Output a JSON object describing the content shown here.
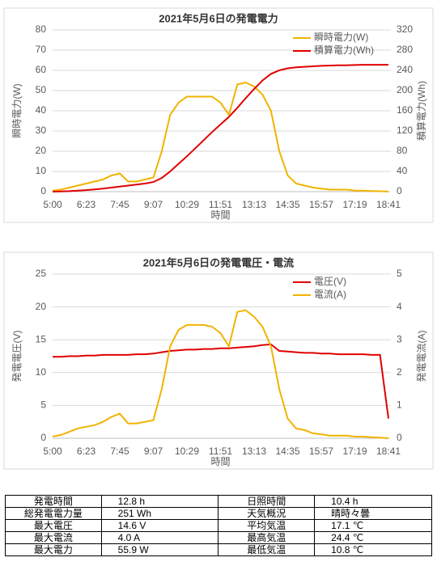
{
  "chart_data": [
    {
      "type": "line",
      "title": "2021年5月6日の発電電力",
      "xlabel": "時間",
      "ylabel": "瞬時電力(W)",
      "y2label": "積算電力(Wh)",
      "categories": [
        "5:00",
        null,
        null,
        null,
        "6:23",
        null,
        null,
        null,
        "7:45",
        null,
        null,
        null,
        "9:07",
        null,
        null,
        null,
        "10:29",
        null,
        null,
        null,
        "11:51",
        null,
        null,
        null,
        "13:13",
        null,
        null,
        null,
        "14:35",
        null,
        null,
        null,
        "15:57",
        null,
        null,
        null,
        "17:19",
        null,
        null,
        null,
        "18:41"
      ],
      "ylim": [
        0,
        80
      ],
      "yticks": [
        0,
        10,
        20,
        30,
        40,
        50,
        60,
        70,
        80
      ],
      "y2lim": [
        0,
        320
      ],
      "y2ticks": [
        0,
        40,
        80,
        120,
        160,
        200,
        240,
        280,
        320
      ],
      "grid": true,
      "legend": "upper right",
      "series": [
        {
          "name": "瞬時電力(W)",
          "color": "#f2b300",
          "values": [
            0.5,
            1,
            2,
            3,
            4,
            5,
            6,
            8,
            9,
            5,
            5,
            6,
            7,
            20,
            38,
            44,
            47,
            47,
            47,
            47,
            44,
            38,
            53,
            54,
            52,
            48,
            40,
            20,
            8,
            4,
            3,
            2,
            1.5,
            1,
            1,
            1,
            0.5,
            0.5,
            0.3,
            0.2,
            0
          ]
        },
        {
          "name": "積算電力(Wh)",
          "color": "#e00000",
          "axis": "y2",
          "values": [
            0,
            0.5,
            1,
            2,
            3,
            4.5,
            6,
            8,
            10,
            12,
            14,
            16,
            19,
            27,
            40,
            55,
            70,
            86,
            102,
            118,
            133,
            148,
            166,
            185,
            203,
            220,
            233,
            240,
            244,
            246,
            247,
            248,
            249,
            249.5,
            250,
            250,
            250.5,
            251,
            251,
            251,
            251
          ]
        }
      ]
    },
    {
      "type": "line",
      "title": "2021年5月6日の発電電圧・電流",
      "xlabel": "時間",
      "ylabel": "発電電圧(V)",
      "y2label": "発電電流(A)",
      "categories": [
        "5:00",
        null,
        null,
        null,
        "6:23",
        null,
        null,
        null,
        "7:45",
        null,
        null,
        null,
        "9:07",
        null,
        null,
        null,
        "10:29",
        null,
        null,
        null,
        "11:51",
        null,
        null,
        null,
        "13:13",
        null,
        null,
        null,
        "14:35",
        null,
        null,
        null,
        "15:57",
        null,
        null,
        null,
        "17:19",
        null,
        null,
        null,
        "18:41"
      ],
      "ylim": [
        0,
        25
      ],
      "yticks": [
        0,
        5,
        10,
        15,
        20,
        25
      ],
      "y2lim": [
        0,
        5
      ],
      "y2ticks": [
        0,
        1,
        2,
        3,
        4,
        5
      ],
      "grid": true,
      "legend": "upper right",
      "series": [
        {
          "name": "電圧(V)",
          "color": "#e00000",
          "values": [
            12.4,
            12.4,
            12.5,
            12.5,
            12.6,
            12.6,
            12.7,
            12.7,
            12.7,
            12.7,
            12.8,
            12.8,
            12.9,
            13.1,
            13.3,
            13.4,
            13.5,
            13.5,
            13.6,
            13.6,
            13.7,
            13.7,
            13.8,
            13.9,
            14.0,
            14.2,
            14.3,
            13.3,
            13.2,
            13.1,
            13.0,
            13.0,
            12.9,
            12.9,
            12.8,
            12.8,
            12.8,
            12.8,
            12.7,
            12.7,
            3
          ]
        },
        {
          "name": "電流(A)",
          "color": "#f2b300",
          "axis": "y2",
          "values": [
            0.05,
            0.1,
            0.2,
            0.3,
            0.35,
            0.4,
            0.5,
            0.65,
            0.75,
            0.45,
            0.45,
            0.5,
            0.55,
            1.5,
            2.8,
            3.3,
            3.45,
            3.45,
            3.45,
            3.4,
            3.2,
            2.8,
            3.85,
            3.9,
            3.7,
            3.4,
            2.8,
            1.5,
            0.6,
            0.3,
            0.25,
            0.15,
            0.12,
            0.08,
            0.08,
            0.08,
            0.05,
            0.05,
            0.03,
            0.02,
            0
          ]
        }
      ]
    }
  ],
  "table": {
    "rows": [
      [
        "発電時間",
        "12.8 h",
        "日照時間",
        "10.4 h"
      ],
      [
        "総発電電力量",
        "251 Wh",
        "天気概況",
        "晴時々曇"
      ],
      [
        "最大電圧",
        "14.6 V",
        "平均気温",
        "17.1 ℃"
      ],
      [
        "最大電流",
        "4.0 A",
        "最高気温",
        "24.4 ℃"
      ],
      [
        "最大電力",
        "55.9 W",
        "最低気温",
        "10.8 ℃"
      ]
    ]
  }
}
